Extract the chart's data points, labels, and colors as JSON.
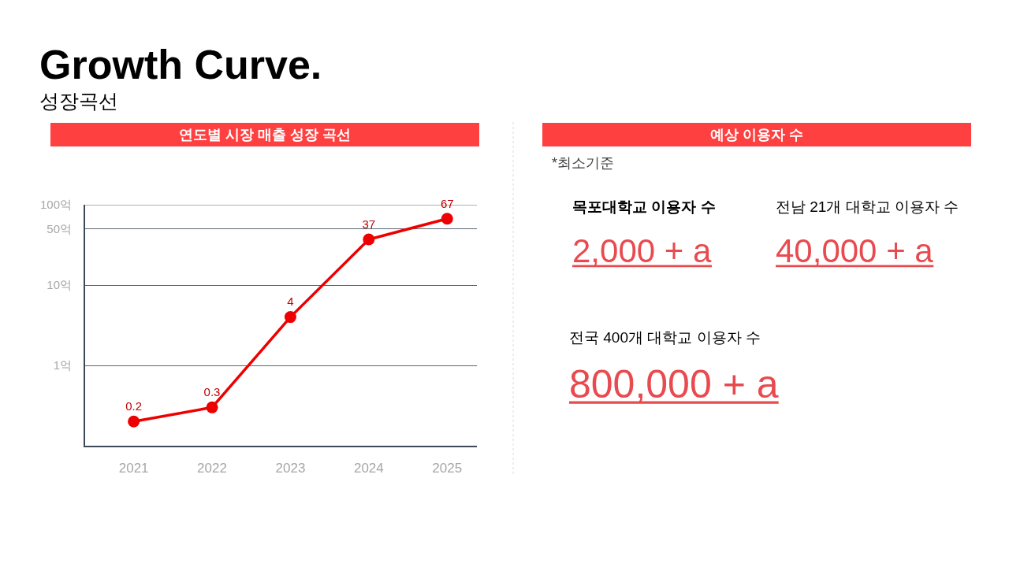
{
  "chart_data": [
    {
      "type": "other",
      "title": "Growth Curve.",
      "subtitle": "성장곡선"
    },
    {
      "type": "line",
      "title": "연도별 시장 매출 성장 곡선",
      "categories": [
        "2021",
        "2022",
        "2023",
        "2024",
        "2025"
      ],
      "series": [
        {
          "color": "#ee0000",
          "values": [
            0.2,
            0.3,
            4,
            37,
            67
          ]
        }
      ],
      "log": "y",
      "ylim": [
        0.1,
        100
      ],
      "yticks": [
        {
          "value": 1,
          "label": "1억"
        },
        {
          "value": 10,
          "label": "10억"
        },
        {
          "value": 50,
          "label": "50억"
        },
        {
          "value": 100,
          "label": "100억"
        }
      ],
      "grid": "y",
      "marker": "circle",
      "line_style": "solid",
      "data_labels": true
    },
    {
      "type": "other",
      "title": "예상 이용자 수",
      "annotations": [
        "*최소기준",
        "목포대학교 이용자 수",
        "2,000 + a",
        "전남 21개 대학교 이용자 수",
        "40,000 + a",
        "전국 400개 대학교 이용자 수",
        "800,000 + a"
      ]
    }
  ]
}
